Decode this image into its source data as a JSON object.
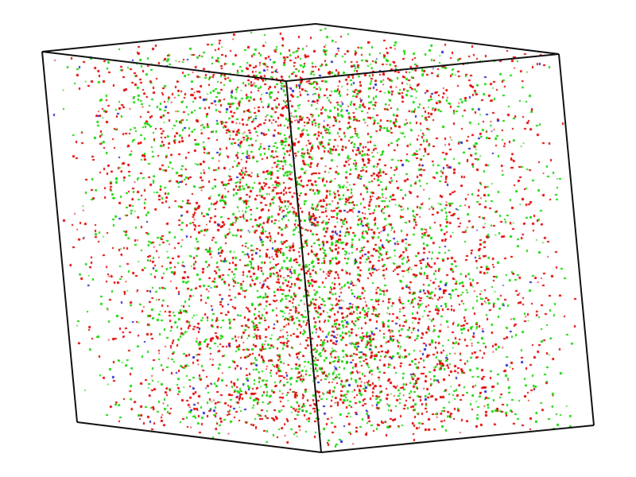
{
  "scene": {
    "background_color": "#ffffff",
    "edge_color": "#111111",
    "species": [
      {
        "color": "#e00000",
        "weight": 0.55
      },
      {
        "color": "#19d400",
        "weight": 0.41
      },
      {
        "color": "#2a2ad0",
        "weight": 0.04
      }
    ]
  }
}
